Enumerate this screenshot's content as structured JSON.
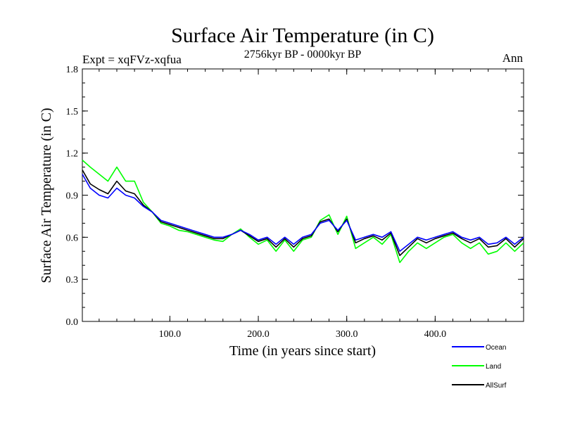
{
  "chart_data": {
    "type": "line",
    "title": "Surface Air Temperature (in C)",
    "subtitle": "2756kyr BP - 0000kyr BP",
    "experiment_label": "Expt = xqFVz-xqfua",
    "season_label": "Ann",
    "xlabel": "Time (in years since start)",
    "ylabel": "Surface Air Temperature (in C)",
    "xlim": [
      1,
      500
    ],
    "ylim": [
      0.0,
      1.8
    ],
    "x_ticks": [
      100,
      200,
      300,
      400
    ],
    "x_tick_labels": [
      "100.0",
      "200.0",
      "300.0",
      "400.0"
    ],
    "y_ticks": [
      0.0,
      0.3,
      0.6,
      0.9,
      1.2,
      1.5,
      1.8
    ],
    "y_tick_labels": [
      "0.0",
      "0.3",
      "0.6",
      "0.9",
      "1.2",
      "1.5",
      "1.8"
    ],
    "legend_position": "bottom-right, below plot",
    "series": [
      {
        "name": "Ocean",
        "color": "#0000ff",
        "x": [
          1,
          10,
          20,
          30,
          40,
          50,
          60,
          70,
          80,
          90,
          100,
          110,
          120,
          130,
          140,
          150,
          160,
          170,
          180,
          190,
          200,
          210,
          220,
          230,
          240,
          250,
          260,
          270,
          280,
          290,
          300,
          310,
          320,
          330,
          340,
          350,
          360,
          370,
          380,
          390,
          400,
          410,
          420,
          430,
          440,
          450,
          460,
          470,
          480,
          490,
          500
        ],
        "values": [
          1.05,
          0.95,
          0.9,
          0.88,
          0.95,
          0.9,
          0.88,
          0.82,
          0.78,
          0.72,
          0.7,
          0.68,
          0.66,
          0.64,
          0.62,
          0.6,
          0.6,
          0.62,
          0.65,
          0.62,
          0.58,
          0.6,
          0.55,
          0.6,
          0.55,
          0.6,
          0.62,
          0.7,
          0.72,
          0.65,
          0.72,
          0.58,
          0.6,
          0.62,
          0.6,
          0.64,
          0.5,
          0.55,
          0.6,
          0.58,
          0.6,
          0.62,
          0.64,
          0.6,
          0.58,
          0.6,
          0.55,
          0.56,
          0.6,
          0.55,
          0.6
        ]
      },
      {
        "name": "Land",
        "color": "#00ff00",
        "x": [
          1,
          10,
          20,
          30,
          40,
          50,
          60,
          70,
          80,
          90,
          100,
          110,
          120,
          130,
          140,
          150,
          160,
          170,
          180,
          190,
          200,
          210,
          220,
          230,
          240,
          250,
          260,
          270,
          280,
          290,
          300,
          310,
          320,
          330,
          340,
          350,
          360,
          370,
          380,
          390,
          400,
          410,
          420,
          430,
          440,
          450,
          460,
          470,
          480,
          490,
          500
        ],
        "values": [
          1.15,
          1.1,
          1.05,
          1.0,
          1.1,
          1.0,
          1.0,
          0.85,
          0.78,
          0.7,
          0.68,
          0.65,
          0.64,
          0.62,
          0.6,
          0.58,
          0.57,
          0.62,
          0.66,
          0.6,
          0.55,
          0.58,
          0.5,
          0.58,
          0.5,
          0.58,
          0.6,
          0.72,
          0.76,
          0.62,
          0.75,
          0.52,
          0.56,
          0.6,
          0.55,
          0.62,
          0.42,
          0.5,
          0.56,
          0.52,
          0.56,
          0.6,
          0.62,
          0.56,
          0.52,
          0.56,
          0.48,
          0.5,
          0.56,
          0.5,
          0.56
        ]
      },
      {
        "name": "AllSurf",
        "color": "#000000",
        "x": [
          1,
          10,
          20,
          30,
          40,
          50,
          60,
          70,
          80,
          90,
          100,
          110,
          120,
          130,
          140,
          150,
          160,
          170,
          180,
          190,
          200,
          210,
          220,
          230,
          240,
          250,
          260,
          270,
          280,
          290,
          300,
          310,
          320,
          330,
          340,
          350,
          360,
          370,
          380,
          390,
          400,
          410,
          420,
          430,
          440,
          450,
          460,
          470,
          480,
          490,
          500
        ],
        "values": [
          1.08,
          0.98,
          0.94,
          0.91,
          1.0,
          0.93,
          0.91,
          0.83,
          0.78,
          0.71,
          0.69,
          0.67,
          0.65,
          0.63,
          0.61,
          0.59,
          0.59,
          0.62,
          0.65,
          0.61,
          0.57,
          0.59,
          0.53,
          0.59,
          0.53,
          0.59,
          0.61,
          0.71,
          0.73,
          0.64,
          0.73,
          0.56,
          0.59,
          0.61,
          0.58,
          0.63,
          0.47,
          0.53,
          0.59,
          0.56,
          0.59,
          0.61,
          0.63,
          0.59,
          0.56,
          0.59,
          0.53,
          0.54,
          0.59,
          0.53,
          0.59
        ]
      }
    ]
  }
}
